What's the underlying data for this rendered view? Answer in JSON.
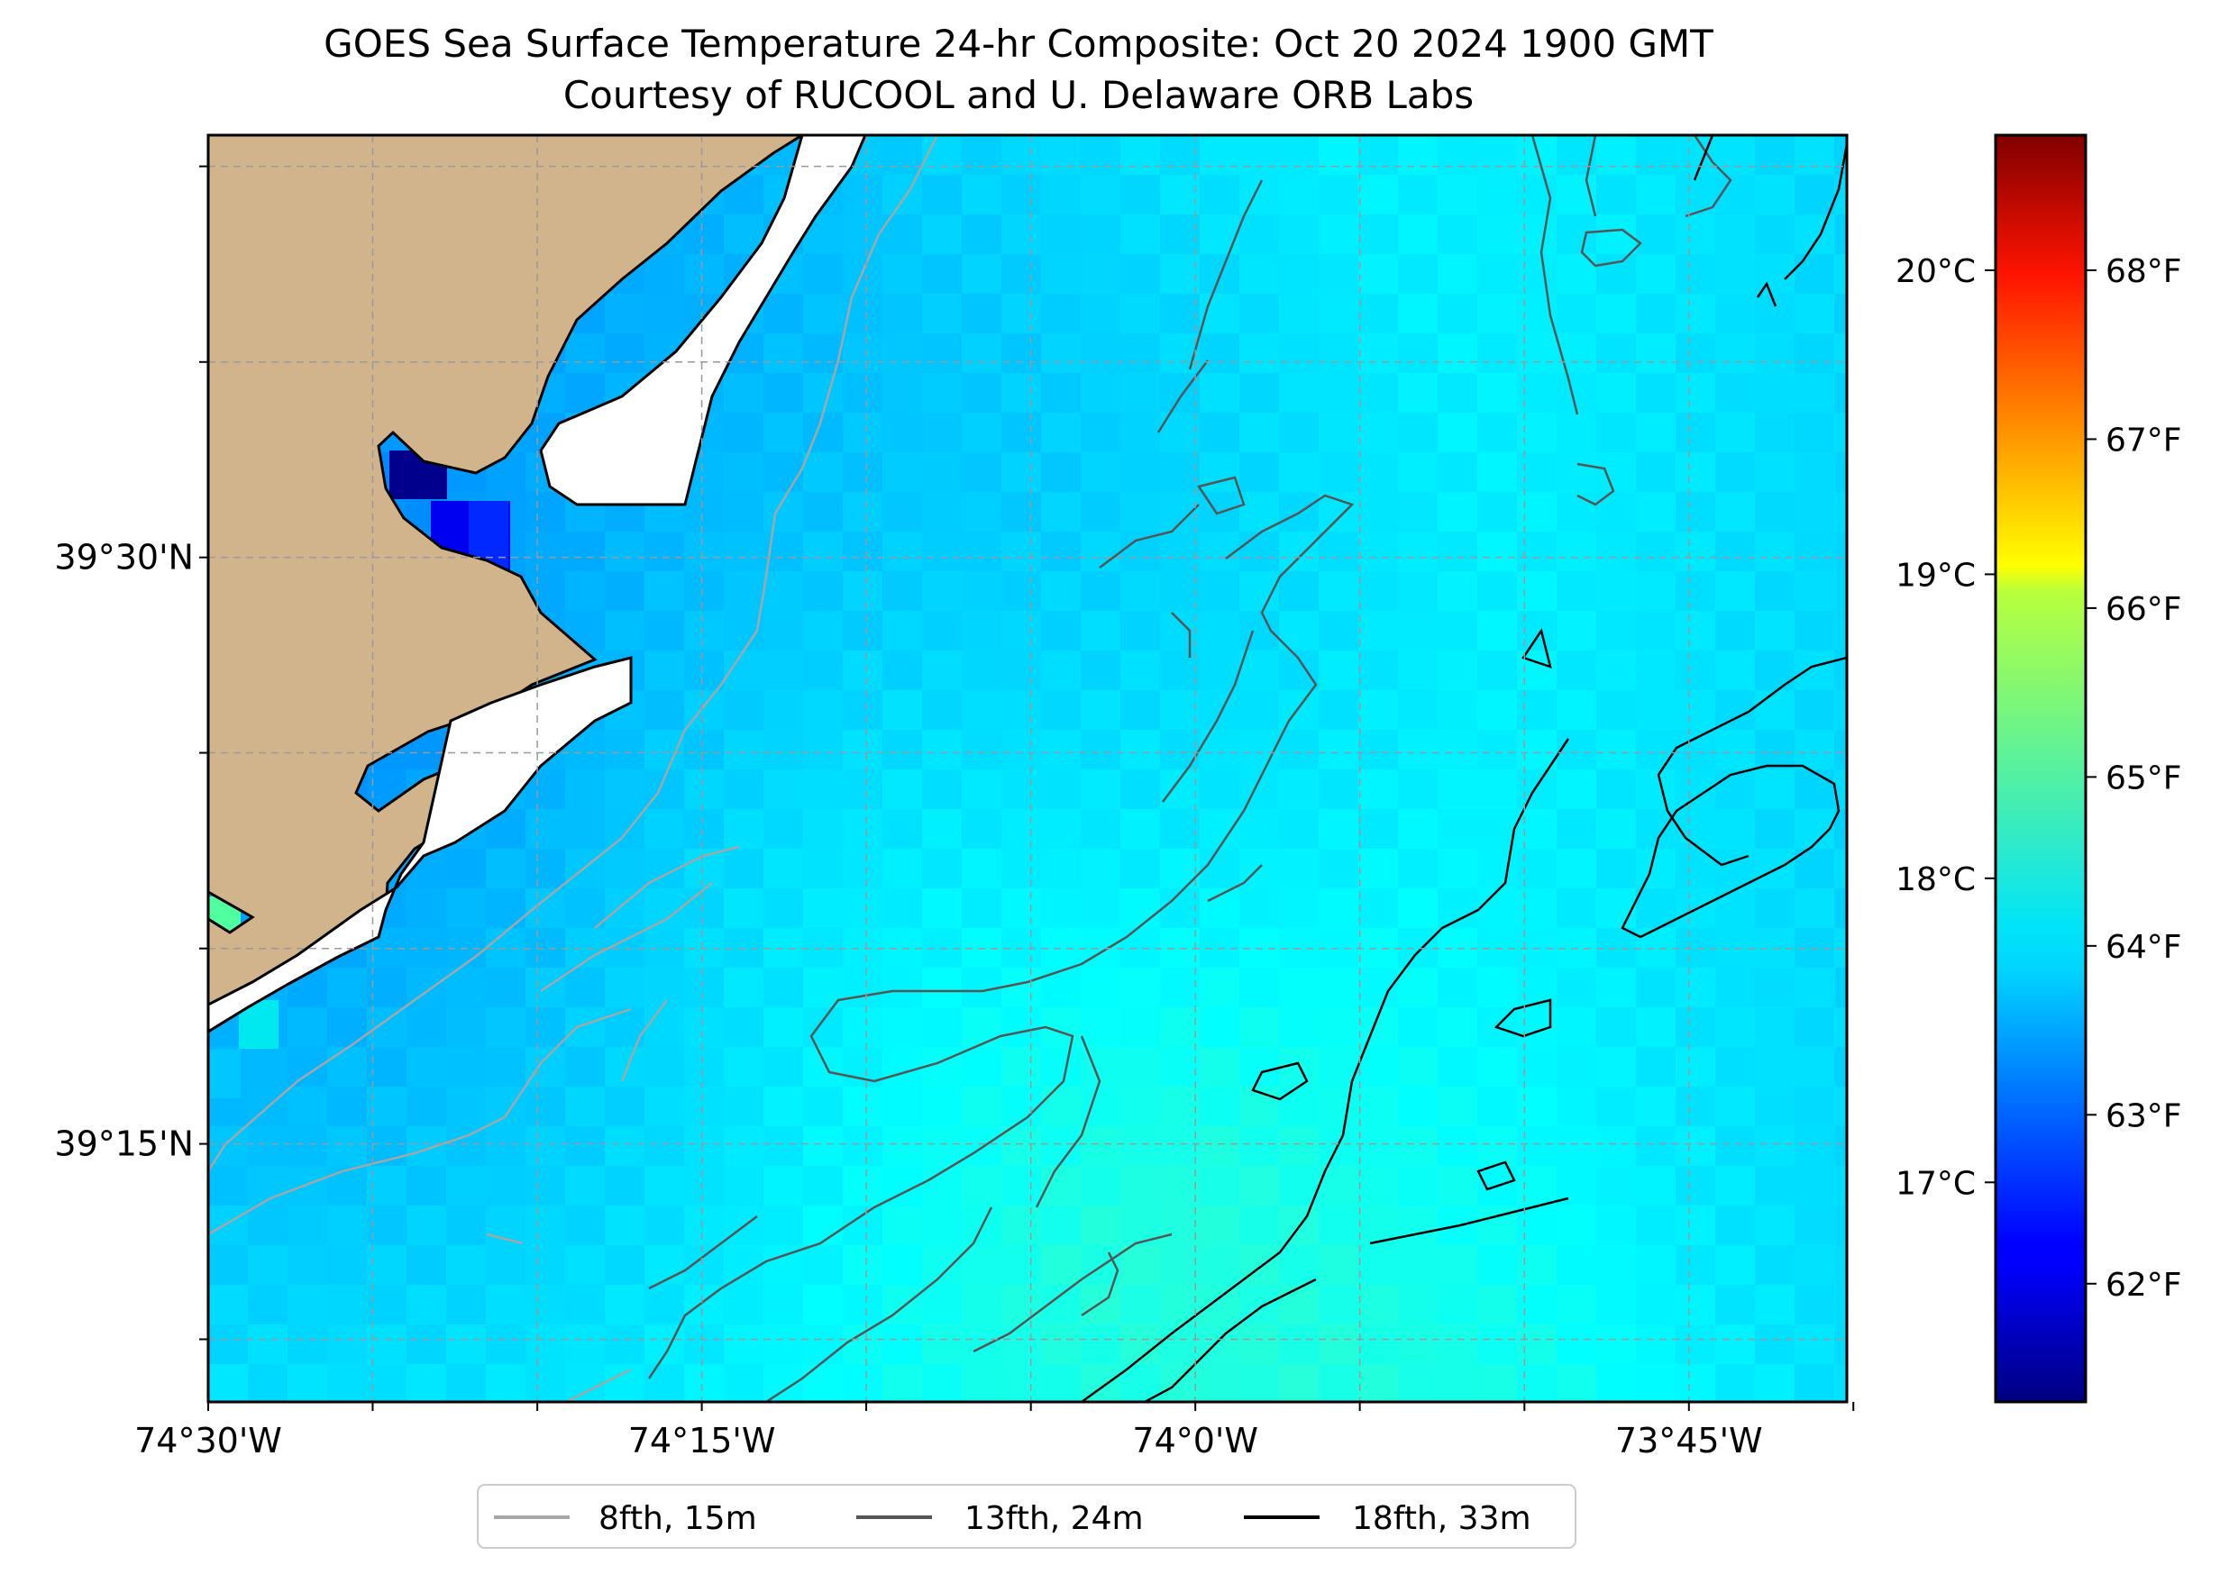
{
  "title": {
    "line1": "GOES Sea Surface Temperature 24-hr Composite: Oct 20 2024 1900 GMT",
    "line2": "Courtesy of RUCOOL and U. Delaware ORB Labs"
  },
  "map": {
    "lon_range": [
      -74.5,
      -73.67
    ],
    "lat_range": [
      39.14,
      39.68
    ],
    "land_color": "#d2b48c",
    "water_nodata_color": "#ffffff",
    "lon_ticks": [
      {
        "value": -74.5,
        "label": "74°30'W"
      },
      {
        "value": -74.25,
        "label": "74°15'W"
      },
      {
        "value": -74.0,
        "label": "74°0'W"
      },
      {
        "value": -73.75,
        "label": "73°45'W"
      }
    ],
    "lat_ticks": [
      {
        "value": 39.5,
        "label": "39°30'N"
      },
      {
        "value": 39.25,
        "label": "39°15'N"
      }
    ],
    "grid": "dashed"
  },
  "colorbar": {
    "colormap": "jet",
    "min_f": 61.3,
    "max_f": 68.8,
    "fahrenheit_ticks": [
      {
        "value": 62,
        "label": "62°F"
      },
      {
        "value": 63,
        "label": "63°F"
      },
      {
        "value": 64,
        "label": "64°F"
      },
      {
        "value": 65,
        "label": "65°F"
      },
      {
        "value": 66,
        "label": "66°F"
      },
      {
        "value": 67,
        "label": "67°F"
      },
      {
        "value": 68,
        "label": "68°F"
      }
    ],
    "celsius_ticks": [
      {
        "value": 17,
        "label": "17°C"
      },
      {
        "value": 18,
        "label": "18°C"
      },
      {
        "value": 19,
        "label": "19°C"
      },
      {
        "value": 20,
        "label": "20°C"
      }
    ]
  },
  "legend": {
    "placement": "bottom-center",
    "items": [
      {
        "label": "8fth, 15m",
        "color": "#a6a6a6"
      },
      {
        "label": "13fth, 24m",
        "color": "#555555"
      },
      {
        "label": "18fth, 33m",
        "color": "#000000"
      }
    ]
  }
}
